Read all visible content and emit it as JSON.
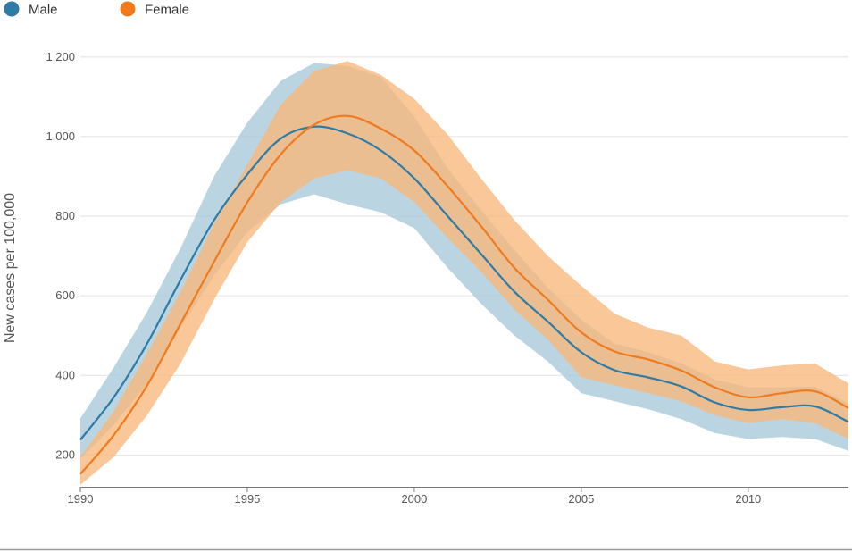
{
  "chart_data": {
    "type": "area",
    "ylabel": "New cases per 100,000",
    "xlabel": "",
    "xlim": [
      1990,
      2013
    ],
    "ylim": [
      120,
      1240
    ],
    "y_ticks": [
      200,
      400,
      600,
      800,
      1000,
      1200
    ],
    "x_ticks": [
      1990,
      1995,
      2000,
      2005,
      2010
    ],
    "grid": "horizontal",
    "legend_position": "top-left",
    "x": [
      1990,
      1991,
      1992,
      1993,
      1994,
      1995,
      1996,
      1997,
      1998,
      1999,
      2000,
      2001,
      2002,
      2003,
      2004,
      2005,
      2006,
      2007,
      2008,
      2009,
      2010,
      2011,
      2012,
      2013
    ],
    "series": [
      {
        "name": "Male",
        "color": "#2e7ba6",
        "band_color": "#a7c9d9",
        "values": [
          238,
          345,
          480,
          640,
          790,
          905,
          995,
          1025,
          1008,
          965,
          895,
          800,
          705,
          610,
          535,
          458,
          413,
          395,
          372,
          332,
          313,
          320,
          322,
          283
        ],
        "upper": [
          292,
          420,
          560,
          720,
          900,
          1035,
          1140,
          1185,
          1178,
          1150,
          1050,
          920,
          815,
          715,
          620,
          540,
          480,
          458,
          430,
          390,
          370,
          370,
          372,
          330
        ],
        "lower": [
          190,
          275,
          380,
          520,
          650,
          760,
          830,
          855,
          830,
          810,
          770,
          670,
          580,
          500,
          435,
          355,
          335,
          315,
          290,
          255,
          240,
          245,
          240,
          210
        ]
      },
      {
        "name": "Female",
        "color": "#f07a1e",
        "band_color": "#f8b77b",
        "values": [
          152,
          250,
          375,
          530,
          685,
          835,
          955,
          1030,
          1052,
          1020,
          965,
          875,
          775,
          670,
          590,
          508,
          460,
          440,
          412,
          370,
          345,
          355,
          360,
          318
        ],
        "upper": [
          195,
          310,
          455,
          610,
          780,
          930,
          1080,
          1165,
          1190,
          1155,
          1095,
          1005,
          895,
          790,
          700,
          625,
          555,
          520,
          500,
          435,
          415,
          425,
          430,
          380
        ],
        "lower": [
          125,
          195,
          300,
          430,
          590,
          735,
          835,
          895,
          915,
          895,
          835,
          745,
          660,
          565,
          490,
          395,
          375,
          355,
          335,
          300,
          280,
          290,
          280,
          240
        ]
      }
    ]
  }
}
